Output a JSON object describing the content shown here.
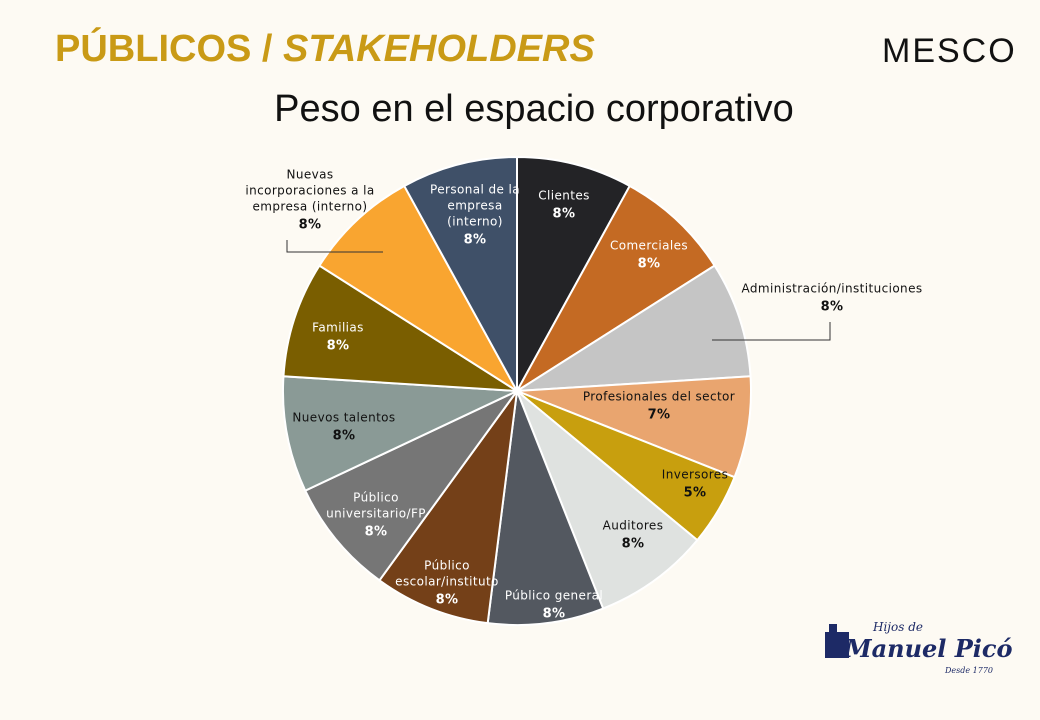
{
  "header": {
    "title_main": "PÚBLICOS / ",
    "title_italic": "STAKEHOLDERS",
    "brand": "MESCO"
  },
  "footer_logo": {
    "line1": "Hijos de",
    "line2": "Manuel Picó",
    "line3": "Desde 1770"
  },
  "chart_data": {
    "type": "pie",
    "title": "Peso en el espacio corporativo",
    "categories": [
      "Clientes",
      "Comerciales",
      "Administración/instituciones",
      "Profesionales del sector",
      "Inversores",
      "Auditores",
      "Público general",
      "Público escolar/instituto",
      "Público universitario/FP",
      "Nuevos talentos",
      "Familias",
      "Nuevas incorporaciones a la empresa (interno)",
      "Personal de la empresa (interno)"
    ],
    "values": [
      8,
      8,
      8,
      7,
      5,
      8,
      8,
      8,
      8,
      8,
      8,
      8,
      8
    ],
    "value_labels": [
      "8%",
      "8%",
      "8%",
      "7%",
      "5%",
      "8%",
      "8%",
      "8%",
      "8%",
      "8%",
      "8%",
      "8%",
      "8%"
    ],
    "colors": [
      "#232326",
      "#c46a23",
      "#c5c5c5",
      "#e9a56f",
      "#c89f0e",
      "#dfe2e0",
      "#535860",
      "#744018",
      "#767676",
      "#8a9a96",
      "#7a5e00",
      "#f9a530",
      "#3f5068"
    ]
  }
}
